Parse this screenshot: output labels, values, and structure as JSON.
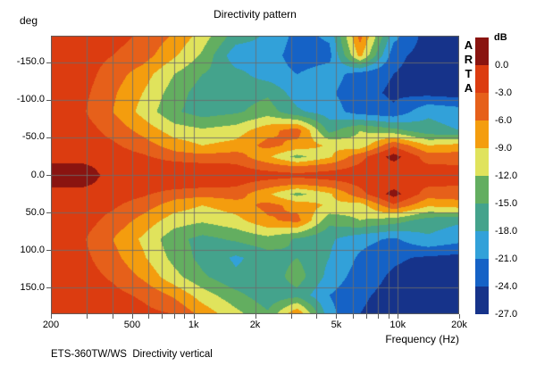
{
  "title": "Directivity pattern",
  "branding": "ARTA",
  "caption": "ETS-360TW/WS  Directivity vertical",
  "axes": {
    "y_unit_label": "deg",
    "x_label": "Frequency (Hz)"
  },
  "colorbar": {
    "unit_label": "dB",
    "tick_labels": [
      "0.0",
      "-3.0",
      "-6.0",
      "-9.0",
      "-12.0",
      "-15.0",
      "-18.0",
      "-21.0",
      "-24.0",
      "-27.0"
    ]
  },
  "chart_data": {
    "type": "heatmap",
    "title": "Directivity pattern",
    "xlabel": "Frequency (Hz)",
    "ylabel": "deg",
    "zlabel": "dB",
    "x_scale": "log",
    "xlim_hz": [
      200,
      20000
    ],
    "ylim_deg": [
      -185.7,
      185.7
    ],
    "grid_on": true,
    "x_ticks": [
      {
        "hz": 200,
        "label": "200"
      },
      {
        "hz": 500,
        "label": "500"
      },
      {
        "hz": 1000,
        "label": "1k"
      },
      {
        "hz": 2000,
        "label": "2k"
      },
      {
        "hz": 5000,
        "label": "5k"
      },
      {
        "hz": 10000,
        "label": "10k"
      },
      {
        "hz": 20000,
        "label": "20k"
      }
    ],
    "x_gridlines_hz": [
      300,
      400,
      500,
      600,
      700,
      800,
      900,
      1000,
      2000,
      3000,
      4000,
      5000,
      6000,
      7000,
      8000,
      9000,
      10000
    ],
    "y_ticks": [
      {
        "deg": -150,
        "label": "-150.0"
      },
      {
        "deg": -100,
        "label": "-100.0"
      },
      {
        "deg": -50,
        "label": "-50.0"
      },
      {
        "deg": 0,
        "label": "0.0"
      },
      {
        "deg": 50,
        "label": "50.0"
      },
      {
        "deg": 100,
        "label": "100.0"
      },
      {
        "deg": 150,
        "label": "150.0"
      }
    ],
    "levels_db": [
      0,
      -3,
      -6,
      -9,
      -12,
      -15,
      -18,
      -21,
      -24,
      -27
    ],
    "palette": [
      "#8a1410",
      "#dc3c10",
      "#e6601a",
      "#f49d0e",
      "#e0e35c",
      "#63ae60",
      "#44a38c",
      "#32a1d9",
      "#1562c6",
      "#16338a"
    ],
    "palette_meaning": "index 0 = above 0 dB, then 3 dB bands down to -27 dB",
    "grid": {
      "freqs_hz": [
        200,
        280,
        400,
        560,
        800,
        1100,
        1600,
        2300,
        3200,
        4600,
        6500,
        9500,
        14000,
        20000
      ],
      "angles_deg": [
        -185,
        -160,
        -135,
        -110,
        -85,
        -60,
        -40,
        -25,
        -12,
        0,
        12,
        25,
        40,
        60,
        85,
        110,
        135,
        160,
        185
      ],
      "spl_db_rel": [
        [
          -1.5,
          -1.5,
          -2,
          -3.5,
          -6.5,
          -10.5,
          -16.5,
          -18.5,
          -22,
          -20.5,
          -5,
          -20,
          -25.5,
          -25.5
        ],
        [
          -1.5,
          -1.5,
          -3,
          -4.5,
          -8.5,
          -12.5,
          -20,
          -19.5,
          -22.5,
          -22,
          -8,
          -23,
          -25.5,
          -25.5
        ],
        [
          -1.5,
          -1.5,
          -4.5,
          -7.5,
          -12,
          -15,
          -17,
          -19.5,
          -21,
          -19.5,
          -22.5,
          -24,
          -25.5,
          -25.5
        ],
        [
          -1.5,
          -2,
          -5.5,
          -9,
          -13.5,
          -16.5,
          -16.5,
          -15.5,
          -19.5,
          -20.5,
          -23,
          -24.5,
          -25,
          -25.5
        ],
        [
          -1.5,
          -2.5,
          -6,
          -10,
          -14.5,
          -16.5,
          -15.5,
          -13.5,
          -17.5,
          -19.5,
          -22.5,
          -23.5,
          -18.5,
          -19.5
        ],
        [
          -1.5,
          -1.5,
          -4,
          -7,
          -10.5,
          -11.5,
          -10.5,
          -7,
          -4.5,
          -16,
          -12,
          -14,
          -17,
          -18
        ],
        [
          -1.5,
          -1.5,
          -2.5,
          -4.5,
          -7.5,
          -9,
          -8,
          -5,
          -7,
          -9.5,
          -11,
          -3.5,
          -9,
          -8
        ],
        [
          -1,
          -1,
          -1.5,
          -2.5,
          -4.5,
          -5,
          -4.5,
          -8.5,
          -13,
          -9.5,
          -4,
          1.2,
          -4.5,
          -4.5
        ],
        [
          0.5,
          0.5,
          -1,
          -1,
          -1.5,
          -2,
          -2.5,
          -4.5,
          -6,
          -4.5,
          -2.5,
          -1.2,
          -2.5,
          -2.8
        ],
        [
          1.5,
          1.5,
          -1,
          -1,
          -1,
          -1,
          -1.5,
          -1.5,
          -2,
          -1.5,
          -1.5,
          -1.5,
          -1.5,
          -1.5
        ],
        [
          0.5,
          0.5,
          -1,
          -1,
          -1.5,
          -2,
          -2.5,
          -4.5,
          -6,
          -4.5,
          -2.5,
          -1.2,
          -2.5,
          -2.8
        ],
        [
          -1,
          -1,
          -1.5,
          -2.5,
          -4.5,
          -5,
          -4.5,
          -8.5,
          -13,
          -9.5,
          -4,
          1.2,
          -4.5,
          -4.5
        ],
        [
          -1.5,
          -1.5,
          -2.5,
          -4.5,
          -7.5,
          -9,
          -7.5,
          -5,
          -7,
          -9.5,
          -10.5,
          -3.5,
          -8.5,
          -7.5
        ],
        [
          -1.5,
          -1.5,
          -4,
          -7,
          -10.5,
          -11.5,
          -10,
          -6.5,
          -5,
          -14,
          -12,
          -13.5,
          -16.5,
          -17.5
        ],
        [
          -1.5,
          -2.5,
          -6,
          -9.5,
          -14,
          -16,
          -14.5,
          -13,
          -15.5,
          -17.5,
          -20,
          -21.5,
          -18.5,
          -20
        ],
        [
          -1.5,
          -2,
          -5,
          -8.5,
          -13,
          -16,
          -18.5,
          -16.5,
          -15,
          -18,
          -21.5,
          -23.5,
          -24.5,
          -25
        ],
        [
          -1.5,
          -1.5,
          -3.5,
          -6.5,
          -11,
          -14.5,
          -17.5,
          -17,
          -13.5,
          -19,
          -22.5,
          -24.5,
          -25.5,
          -25.5
        ],
        [
          -1.5,
          -1.5,
          -2,
          -3.5,
          -6.5,
          -10.5,
          -14,
          -17,
          -16,
          -21,
          -23.5,
          -25,
          -25.5,
          -25.5
        ],
        [
          -1.5,
          -1.5,
          -1.5,
          -2,
          -3,
          -7,
          -11,
          -14.5,
          -6,
          -20,
          -24,
          -25.5,
          -25.5,
          -25.5
        ]
      ]
    }
  }
}
